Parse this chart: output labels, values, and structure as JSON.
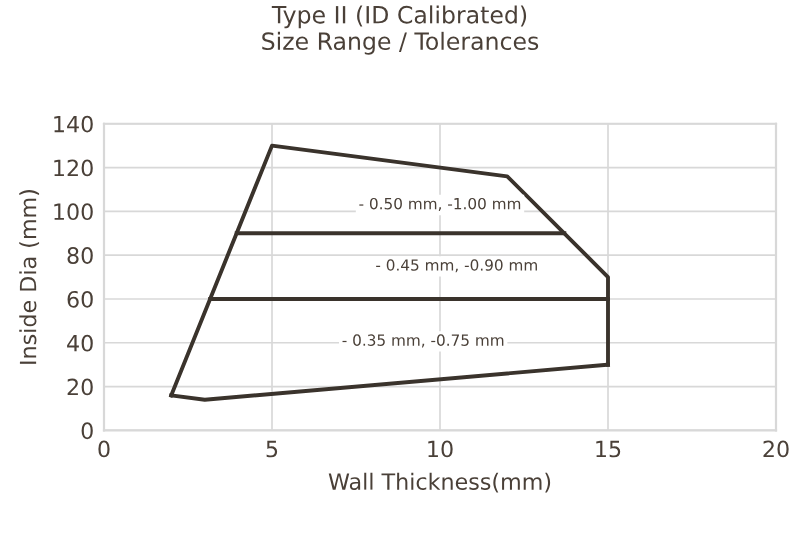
{
  "chart_data": {
    "type": "line",
    "title": "Type II (ID Calibrated)\nSize Range / Tolerances",
    "xlabel": "Wall Thickness(mm)",
    "ylabel": "Inside Dia (mm)",
    "series": [
      {
        "color": "#3a332c",
        "x": [
          2,
          5,
          12,
          15,
          15
        ],
        "values": [
          16,
          130,
          116,
          70,
          30
        ]
      },
      {
        "color": "#3a332c",
        "x": [
          2,
          3,
          15
        ],
        "values": [
          16,
          14,
          30
        ]
      },
      {
        "color": "#3a332c",
        "x": [
          3.95,
          13.7
        ],
        "values": [
          90,
          90
        ]
      },
      {
        "color": "#3a332c",
        "x": [
          3.16,
          15
        ],
        "values": [
          60,
          60
        ]
      }
    ],
    "annotations": [
      "- 0.50 mm, -1.00 mm",
      "- 0.45 mm, -0.90 mm",
      "- 0.35 mm, -0.75 mm"
    ],
    "xlim": [
      0,
      20
    ],
    "xticks": [
      0,
      5,
      10,
      15,
      20
    ],
    "ylim": [
      0,
      140
    ],
    "yticks": [
      0,
      20,
      40,
      60,
      80,
      100,
      120,
      140
    ],
    "grid": true,
    "marker": "none",
    "line_style": "solid",
    "legend": false
  }
}
